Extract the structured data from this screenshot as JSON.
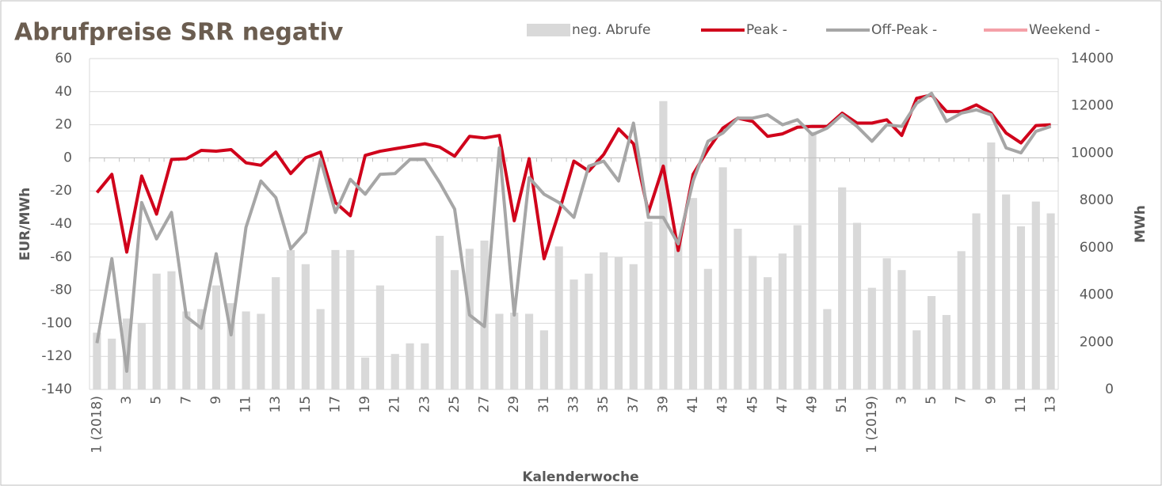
{
  "chart_data": {
    "type": "combo",
    "title": "Abrufpreise SRR negativ",
    "x_label": "Kalenderwoche",
    "y_label": "EUR/MWh",
    "y2_label": "MWh",
    "categories": [
      "1 (2018)",
      null,
      "3",
      null,
      "5",
      null,
      "7",
      null,
      "9",
      null,
      "11",
      null,
      "13",
      null,
      "15",
      null,
      "17",
      null,
      "19",
      null,
      "21",
      null,
      "23",
      null,
      "25",
      null,
      "27",
      null,
      "29",
      null,
      "31",
      null,
      "33",
      null,
      "35",
      null,
      "37",
      null,
      "39",
      null,
      "41",
      null,
      "43",
      null,
      "45",
      null,
      "47",
      null,
      "49",
      null,
      "51",
      null,
      "1 (2019)",
      null,
      "3",
      null,
      "5",
      null,
      "7",
      null,
      "9",
      null,
      "11",
      null,
      "13"
    ],
    "ylim": [
      -140,
      60
    ],
    "yticks": [
      -140,
      -120,
      -100,
      -80,
      -60,
      -40,
      -20,
      0,
      20,
      40,
      60
    ],
    "y2lim": [
      0,
      14000
    ],
    "y2ticks": [
      0,
      2000,
      4000,
      6000,
      8000,
      10000,
      12000,
      14000
    ],
    "grid": true,
    "legend": "top",
    "series": [
      {
        "name": "neg. Abrufe",
        "type": "bar",
        "axis": "y2",
        "color": "#d9d9d9",
        "values": [
          2400,
          2150,
          3000,
          2800,
          4900,
          5000,
          3300,
          3400,
          4400,
          3650,
          3300,
          3200,
          4750,
          5900,
          5300,
          3400,
          5900,
          5900,
          1350,
          4400,
          1500,
          1950,
          1950,
          6500,
          5050,
          5950,
          6300,
          3200,
          3250,
          3200,
          2500,
          6050,
          4650,
          4900,
          5800,
          5600,
          5300,
          7100,
          12200,
          6450,
          8100,
          5100,
          9400,
          6800,
          5650,
          4750,
          5750,
          6950,
          10900,
          3400,
          8550,
          7050,
          4300,
          5550,
          5050,
          2500,
          3950,
          3150,
          5850,
          7450,
          10450,
          8250,
          6900,
          7950,
          7450
        ]
      },
      {
        "name": "Peak -",
        "type": "line",
        "color": "#d0021b",
        "values": [
          -21,
          -10,
          -57,
          -11,
          -34,
          -1,
          -0.5,
          4.5,
          4,
          5,
          -3,
          -4.5,
          3.5,
          -9.5,
          0,
          3.5,
          -27,
          -35,
          1.5,
          4,
          5.5,
          7,
          8.5,
          6.5,
          1,
          13,
          12,
          13.5,
          -38,
          -0.5,
          -61,
          -33,
          -2,
          -8,
          2,
          17.5,
          8.5,
          -33,
          -5,
          -56,
          -10,
          5,
          18,
          24,
          22,
          13,
          14.5,
          18.5,
          19,
          19,
          27,
          21,
          21,
          23,
          13.5,
          36,
          38,
          28,
          28,
          32,
          27,
          15,
          9,
          19.5,
          20
        ]
      },
      {
        "name": "Off-Peak -",
        "type": "line",
        "color": "#a6a6a6",
        "values": [
          -112,
          -61,
          -129,
          -27,
          -49,
          -33,
          -96,
          -103,
          -58,
          -107,
          -42,
          -14,
          -24,
          -55,
          -45,
          -1,
          -33,
          -13,
          -22,
          -10,
          -9.5,
          -1,
          -1,
          -15,
          -31,
          -95,
          -102,
          6,
          -95,
          -12,
          -22,
          -27,
          -36,
          -5,
          -2,
          -14,
          21,
          -36,
          -36,
          -52,
          -14,
          10,
          15,
          24,
          24,
          26,
          20,
          23,
          14,
          18,
          26,
          19,
          10,
          20,
          19,
          33,
          39,
          22,
          27,
          29,
          26,
          6,
          3,
          16,
          19
        ]
      },
      {
        "name": "Weekend -",
        "type": "line",
        "color": "#f4a0a8",
        "values": [
          null,
          null,
          null,
          null,
          null,
          null,
          null,
          null,
          null,
          null,
          null,
          null,
          null,
          null,
          null,
          null,
          null,
          null,
          null,
          null,
          null,
          null,
          null,
          null,
          null,
          null,
          null,
          null,
          null,
          null,
          null,
          null,
          null,
          null,
          null,
          null,
          null,
          null,
          null,
          null,
          null,
          null,
          null,
          null,
          null,
          null,
          null,
          null,
          null,
          null,
          null,
          null,
          null,
          null,
          null,
          null,
          null,
          null,
          null,
          null,
          null,
          null,
          null,
          null,
          null
        ]
      }
    ]
  }
}
